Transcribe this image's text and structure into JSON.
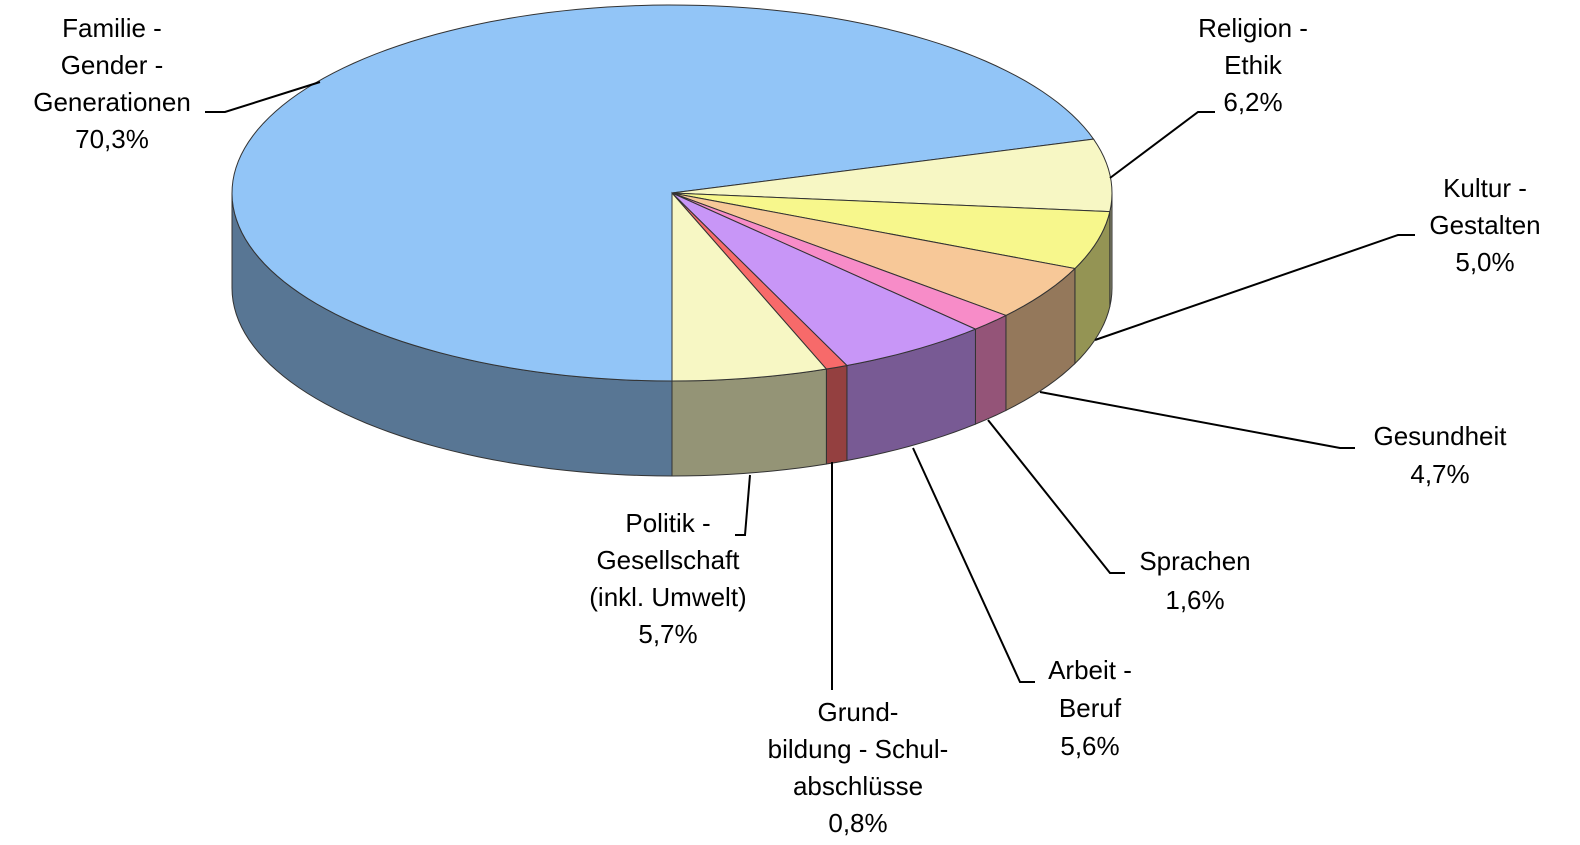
{
  "chart_data": {
    "type": "pie3d",
    "categories": [
      "Familie -\nGender -\nGenerationen",
      "Religion -\nEthik",
      "Kultur -\nGestalten",
      "Gesundheit",
      "Sprachen",
      "Arbeit -\nBeruf",
      "Grund-\nbildung - Schul-\nabschlüsse",
      "Politik -\nGesellschaft\n(inkl. Umwelt)"
    ],
    "values": [
      70.3,
      6.2,
      5.0,
      4.7,
      1.6,
      5.6,
      0.8,
      5.7
    ],
    "value_labels": [
      "70,3%",
      "6,2%",
      "5,0%",
      "4,7%",
      "1,6%",
      "5,6%",
      "0,8%",
      "5,7%"
    ],
    "colors": [
      "#92c5f7",
      "#f7f7c4",
      "#f7f78c",
      "#f7c898",
      "#f78cc8",
      "#c896f7",
      "#f76a6a",
      "#f7f7c4"
    ]
  }
}
